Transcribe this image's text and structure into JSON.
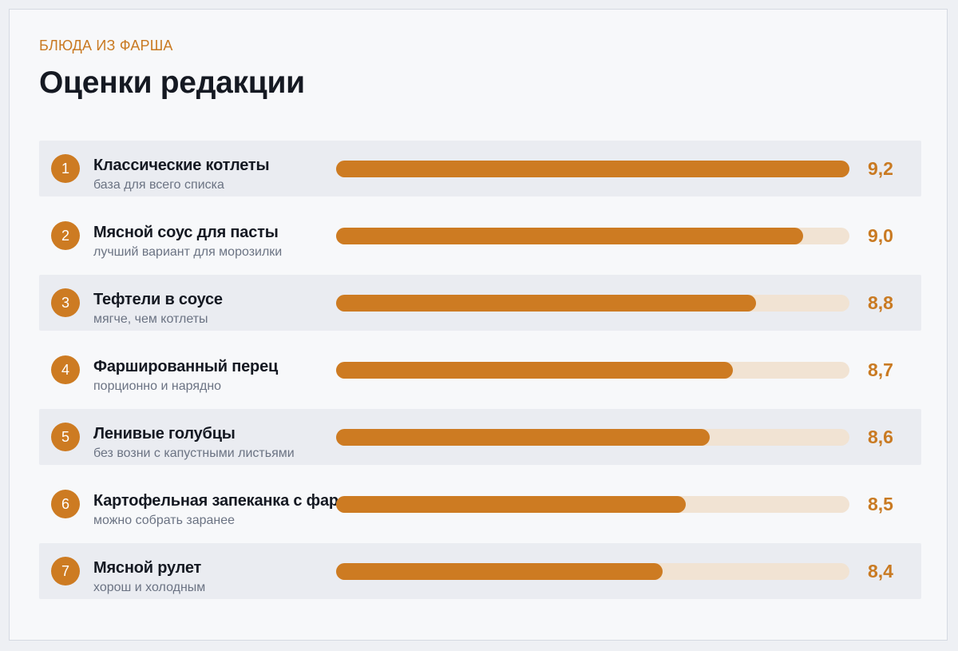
{
  "header": {
    "eyebrow": "БЛЮДА ИЗ ФАРША",
    "title": "Оценки редакции"
  },
  "colors": {
    "accent": "#cd7b22",
    "track": "#f1e3d3",
    "row_shade": "#eaecf1"
  },
  "chart_data": {
    "type": "bar",
    "orientation": "horizontal",
    "title": "Оценки редакции",
    "categories": [
      "Классические котлеты",
      "Мясной соус для пасты",
      "Тефтели в соусе",
      "Фаршированный перец",
      "Ленивые голубцы",
      "Картофельная запеканка с фар",
      "Мясной рулет"
    ],
    "series": [
      {
        "values": [
          9.2,
          9.0,
          8.8,
          8.7,
          8.6,
          8.5,
          8.4
        ]
      }
    ],
    "xlim": [
      7.0,
      9.2
    ],
    "grid": false,
    "legend": "none"
  },
  "rows": [
    {
      "rank": "1",
      "name": "Классические котлеты",
      "note": "база для всего списка",
      "score": "9,2"
    },
    {
      "rank": "2",
      "name": "Мясной соус для пасты",
      "note": "лучший вариант для морозилки",
      "score": "9,0"
    },
    {
      "rank": "3",
      "name": "Тефтели в соусе",
      "note": "мягче, чем котлеты",
      "score": "8,8"
    },
    {
      "rank": "4",
      "name": "Фаршированный перец",
      "note": "порционно и нарядно",
      "score": "8,7"
    },
    {
      "rank": "5",
      "name": "Ленивые голубцы",
      "note": "без возни с капустными листьями",
      "score": "8,6"
    },
    {
      "rank": "6",
      "name": "Картофельная запеканка с фар",
      "note": "можно собрать заранее",
      "score": "8,5"
    },
    {
      "rank": "7",
      "name": "Мясной рулет",
      "note": "хорош и холодным",
      "score": "8,4"
    }
  ]
}
